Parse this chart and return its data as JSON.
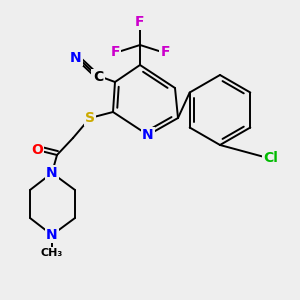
{
  "bg_color": "#eeeeee",
  "bond_color": "#000000",
  "bond_width": 1.4,
  "figsize": [
    3.0,
    3.0
  ],
  "dpi": 100,
  "colors": {
    "N": "#0000ff",
    "S": "#ccaa00",
    "O": "#ff0000",
    "F": "#cc00cc",
    "Cl": "#00bb00",
    "C": "#000000"
  }
}
